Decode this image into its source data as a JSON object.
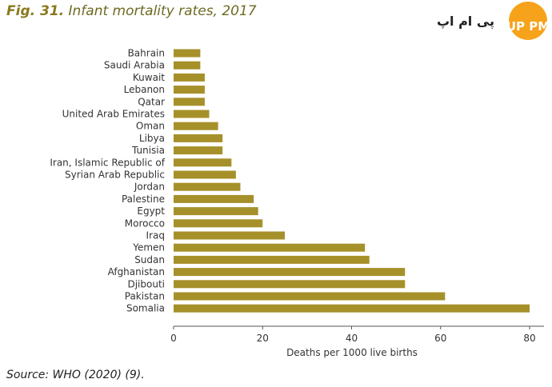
{
  "figure": {
    "number_label": "Fig. 31.",
    "title_text": "Infant mortality rates, 2017",
    "source": "Source: WHO (2020) (9)."
  },
  "watermark": {
    "text": "پی ام اپ",
    "badge_text": "UP PM",
    "badge_color": "#f7a21b"
  },
  "colors": {
    "bar": "#a6902a",
    "title_accent": "#8a7a1f"
  },
  "chart_data": {
    "type": "bar",
    "orientation": "horizontal",
    "categories": [
      "Bahrain",
      "Saudi Arabia",
      "Kuwait",
      "Lebanon",
      "Qatar",
      "United Arab Emirates",
      "Oman",
      "Libya",
      "Tunisia",
      "Iran, Islamic Republic of",
      "Syrian Arab Republic",
      "Jordan",
      "Palestine",
      "Egypt",
      "Morocco",
      "Iraq",
      "Yemen",
      "Sudan",
      "Afghanistan",
      "Djibouti",
      "Pakistan",
      "Somalia"
    ],
    "values": [
      6,
      6,
      7,
      7,
      7,
      8,
      10,
      11,
      11,
      13,
      14,
      15,
      18,
      19,
      20,
      25,
      43,
      44,
      52,
      52,
      61,
      80
    ],
    "title": "Infant mortality rates, 2017",
    "xlabel": "Deaths per 1000 live births",
    "ylabel": "",
    "xlim": [
      0,
      82
    ],
    "xticks": [
      0,
      20,
      40,
      60,
      80
    ],
    "grid": false
  }
}
